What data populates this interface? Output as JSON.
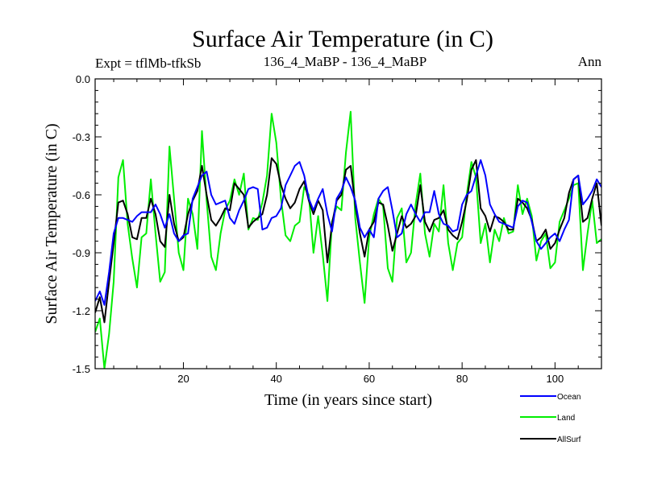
{
  "chart_data": {
    "type": "line",
    "title": "Surface Air Temperature (in C)",
    "subtitle_left": "Expt = tflMb-tfkSb",
    "subtitle_center": "136_4_MaBP - 136_4_MaBP",
    "subtitle_right": "Ann",
    "xlabel": "Time (in years since start)",
    "ylabel": "Surface Air Temperature (in C)",
    "xlim": [
      1,
      110
    ],
    "ylim": [
      -1.5,
      0.0
    ],
    "xticks": [
      20,
      40,
      60,
      80,
      100
    ],
    "yticks": [
      -1.5,
      -1.2,
      -0.9,
      -0.6,
      -0.3,
      0.0
    ],
    "ytick_labels": [
      "-1.5",
      "-1.2",
      "-0.9",
      "-0.6",
      "-0.3",
      "0.0"
    ],
    "x": [
      1,
      2,
      3,
      4,
      5,
      6,
      7,
      8,
      9,
      10,
      11,
      12,
      13,
      14,
      15,
      16,
      17,
      18,
      19,
      20,
      21,
      22,
      23,
      24,
      25,
      26,
      27,
      28,
      29,
      30,
      31,
      32,
      33,
      34,
      35,
      36,
      37,
      38,
      39,
      40,
      41,
      42,
      43,
      44,
      45,
      46,
      47,
      48,
      49,
      50,
      51,
      52,
      53,
      54,
      55,
      56,
      57,
      58,
      59,
      60,
      61,
      62,
      63,
      64,
      65,
      66,
      67,
      68,
      69,
      70,
      71,
      72,
      73,
      74,
      75,
      76,
      77,
      78,
      79,
      80,
      81,
      82,
      83,
      84,
      85,
      86,
      87,
      88,
      89,
      90,
      91,
      92,
      93,
      94,
      95,
      96,
      97,
      98,
      99,
      100,
      101,
      102,
      103,
      104,
      105,
      106,
      107,
      108,
      109,
      110
    ],
    "series": [
      {
        "name": "Ocean",
        "color": "#0000ff",
        "values": [
          -1.15,
          -1.1,
          -1.17,
          -1.0,
          -0.8,
          -0.72,
          -0.72,
          -0.73,
          -0.74,
          -0.71,
          -0.69,
          -0.69,
          -0.69,
          -0.65,
          -0.7,
          -0.77,
          -0.7,
          -0.8,
          -0.84,
          -0.81,
          -0.8,
          -0.62,
          -0.56,
          -0.5,
          -0.48,
          -0.6,
          -0.65,
          -0.64,
          -0.63,
          -0.72,
          -0.75,
          -0.68,
          -0.63,
          -0.57,
          -0.56,
          -0.57,
          -0.78,
          -0.77,
          -0.72,
          -0.71,
          -0.67,
          -0.55,
          -0.5,
          -0.45,
          -0.43,
          -0.5,
          -0.62,
          -0.68,
          -0.62,
          -0.57,
          -0.7,
          -0.79,
          -0.62,
          -0.58,
          -0.51,
          -0.56,
          -0.63,
          -0.77,
          -0.82,
          -0.78,
          -0.82,
          -0.62,
          -0.58,
          -0.56,
          -0.68,
          -0.82,
          -0.8,
          -0.7,
          -0.65,
          -0.7,
          -0.74,
          -0.69,
          -0.69,
          -0.58,
          -0.7,
          -0.75,
          -0.76,
          -0.79,
          -0.78,
          -0.65,
          -0.6,
          -0.58,
          -0.5,
          -0.42,
          -0.5,
          -0.65,
          -0.7,
          -0.74,
          -0.75,
          -0.76,
          -0.77,
          -0.66,
          -0.63,
          -0.64,
          -0.74,
          -0.84,
          -0.88,
          -0.85,
          -0.82,
          -0.8,
          -0.84,
          -0.78,
          -0.73,
          -0.52,
          -0.5,
          -0.65,
          -0.62,
          -0.58,
          -0.52,
          -0.56
        ]
      },
      {
        "name": "Land",
        "color": "#00ee00",
        "values": [
          -1.31,
          -1.24,
          -1.5,
          -1.32,
          -1.05,
          -0.51,
          -0.42,
          -0.75,
          -0.93,
          -1.08,
          -0.82,
          -0.8,
          -0.52,
          -0.8,
          -1.05,
          -1.0,
          -0.35,
          -0.62,
          -0.9,
          -0.99,
          -0.62,
          -0.7,
          -0.88,
          -0.27,
          -0.63,
          -0.92,
          -0.99,
          -0.8,
          -0.68,
          -0.63,
          -0.52,
          -0.6,
          -0.49,
          -0.78,
          -0.72,
          -0.73,
          -0.64,
          -0.5,
          -0.18,
          -0.33,
          -0.62,
          -0.81,
          -0.84,
          -0.76,
          -0.74,
          -0.56,
          -0.6,
          -0.9,
          -0.71,
          -0.91,
          -1.15,
          -0.74,
          -0.66,
          -0.68,
          -0.38,
          -0.17,
          -0.72,
          -0.95,
          -1.16,
          -0.82,
          -0.7,
          -0.62,
          -0.66,
          -0.98,
          -1.05,
          -0.72,
          -0.67,
          -0.95,
          -0.9,
          -0.65,
          -0.49,
          -0.8,
          -0.92,
          -0.75,
          -0.79,
          -0.55,
          -0.85,
          -0.99,
          -0.85,
          -0.82,
          -0.6,
          -0.43,
          -0.51,
          -0.85,
          -0.75,
          -0.95,
          -0.78,
          -0.84,
          -0.72,
          -0.8,
          -0.79,
          -0.55,
          -0.7,
          -0.62,
          -0.71,
          -0.94,
          -0.84,
          -0.8,
          -0.98,
          -0.95,
          -0.74,
          -0.68,
          -0.62,
          -0.55,
          -0.54,
          -0.99,
          -0.8,
          -0.63,
          -0.85,
          -0.83
        ]
      },
      {
        "name": "AllSurf",
        "color": "#000000",
        "values": [
          -1.21,
          -1.13,
          -1.26,
          -1.05,
          -0.85,
          -0.64,
          -0.63,
          -0.7,
          -0.82,
          -0.83,
          -0.72,
          -0.72,
          -0.62,
          -0.7,
          -0.84,
          -0.87,
          -0.6,
          -0.75,
          -0.84,
          -0.82,
          -0.7,
          -0.63,
          -0.58,
          -0.45,
          -0.6,
          -0.73,
          -0.76,
          -0.72,
          -0.67,
          -0.68,
          -0.54,
          -0.57,
          -0.6,
          -0.77,
          -0.74,
          -0.72,
          -0.7,
          -0.6,
          -0.41,
          -0.44,
          -0.55,
          -0.62,
          -0.67,
          -0.64,
          -0.57,
          -0.53,
          -0.63,
          -0.7,
          -0.63,
          -0.68,
          -0.95,
          -0.75,
          -0.63,
          -0.6,
          -0.47,
          -0.45,
          -0.65,
          -0.8,
          -0.92,
          -0.78,
          -0.74,
          -0.64,
          -0.65,
          -0.76,
          -0.89,
          -0.8,
          -0.71,
          -0.77,
          -0.75,
          -0.71,
          -0.55,
          -0.74,
          -0.79,
          -0.73,
          -0.72,
          -0.68,
          -0.78,
          -0.81,
          -0.83,
          -0.74,
          -0.63,
          -0.47,
          -0.42,
          -0.67,
          -0.71,
          -0.79,
          -0.71,
          -0.72,
          -0.74,
          -0.78,
          -0.78,
          -0.62,
          -0.64,
          -0.67,
          -0.73,
          -0.84,
          -0.82,
          -0.78,
          -0.88,
          -0.85,
          -0.78,
          -0.72,
          -0.59,
          -0.52,
          -0.5,
          -0.74,
          -0.72,
          -0.62,
          -0.54,
          -0.76
        ]
      }
    ],
    "legend": [
      "Ocean",
      "Land",
      "AllSurf"
    ],
    "legend_position": "bottom-right",
    "grid": false
  }
}
